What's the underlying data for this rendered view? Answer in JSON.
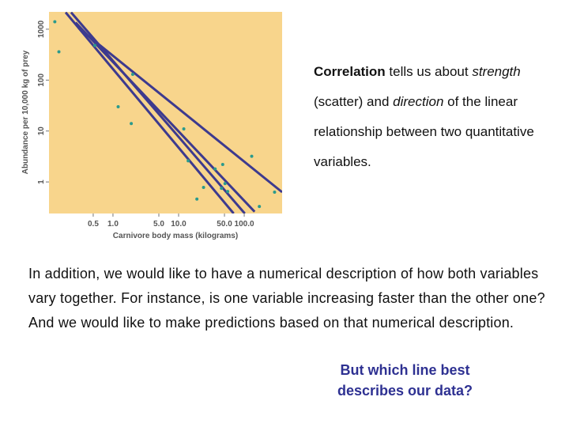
{
  "chart_data": {
    "type": "scatter",
    "x_label": "Carnivore body mass (kilograms)",
    "y_label": "Abundance per 10,000 kg of prey",
    "x": [
      0.13,
      0.15,
      0.53,
      2.0,
      1.2,
      1.9,
      12,
      14,
      19,
      24,
      36,
      47,
      45,
      51,
      56,
      130,
      170,
      290
    ],
    "y": [
      1400,
      360,
      480,
      130,
      30,
      14,
      11,
      2.6,
      0.46,
      0.78,
      1.8,
      2.2,
      0.75,
      0.93,
      0.65,
      3.2,
      0.33,
      0.63
    ],
    "color": "#2b9a8c",
    "lines": [
      {
        "x": [
          0.19,
          69
        ],
        "y": [
          2140,
          0.24
        ]
      },
      {
        "x": [
          0.23,
          102
        ],
        "y": [
          2140,
          0.24
        ]
      },
      {
        "x": [
          0.27,
          144
        ],
        "y": [
          1350,
          0.26
        ]
      },
      {
        "x": [
          0.3,
          378
        ],
        "y": [
          1050,
          0.63
        ]
      }
    ],
    "line_color": "#3d3a8e",
    "background": "#f8d58c",
    "xlog": true,
    "ylog": true,
    "xlim": [
      0.106,
      378
    ],
    "ylim": [
      0.24,
      2190
    ],
    "xticks": [
      0.5,
      {
        "value": 1,
        "label": "1.0"
      },
      {
        "value": 5,
        "label": "5.0"
      },
      {
        "value": 10,
        "label": "10.0"
      },
      {
        "value": 50,
        "label": "50.0"
      },
      {
        "value": 100,
        "label": "100.0"
      }
    ],
    "yticks": [
      1,
      10,
      100,
      1000
    ]
  },
  "intro": [
    {
      "text": "Correlation",
      "bold": true
    },
    {
      "text": " tells us about "
    },
    {
      "text": "strength",
      "italic": true
    },
    {
      "text": " (scatter) and "
    },
    {
      "text": "direction",
      "italic": true
    },
    {
      "text": " of the linear relationship between two quantitative variables."
    }
  ],
  "body": "In addition, we would like to have a numerical description of how both variables vary together. For instance, is one variable increasing faster than the other one? And we would like to make predictions based on that numerical description.",
  "question": "But which line best describes our data?"
}
